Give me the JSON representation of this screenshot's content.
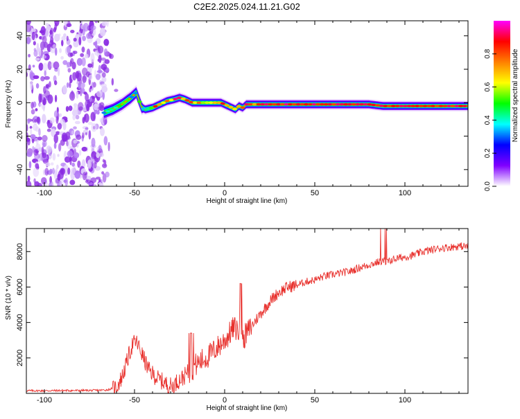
{
  "title": "C2E2.2025.024.11.21.G02",
  "chart_data": [
    {
      "type": "heatmap",
      "xlabel": "Height of straight line (km)",
      "ylabel": "Frequency (Hz)",
      "xlim": [
        -110,
        135
      ],
      "ylim": [
        -50,
        49
      ],
      "xticks": [
        -100,
        -50,
        0,
        50,
        100
      ],
      "xtick_labels": [
        "-100",
        "-50",
        "0",
        "50",
        "100"
      ],
      "yticks": [
        -40,
        -20,
        0,
        20,
        40
      ],
      "ytick_labels": [
        "-40",
        "-20",
        "0",
        "20",
        "40"
      ],
      "noise_region_x": [
        -110,
        -65
      ],
      "ridge": {
        "x": [
          -67,
          -62,
          -57,
          -52,
          -49,
          -46,
          -44,
          -40,
          -36,
          -32,
          -28,
          -25,
          -22,
          -18,
          -14,
          -10,
          -6,
          -2,
          0,
          2,
          4,
          6,
          8,
          10,
          12,
          15,
          20,
          30,
          40,
          60,
          80,
          88,
          95,
          110,
          125,
          135
        ],
        "y": [
          -6,
          -4,
          -1,
          3,
          6,
          -3,
          -4,
          -3,
          -1,
          1,
          2,
          3,
          2,
          0,
          0,
          0,
          0,
          0,
          -1,
          -2,
          -3,
          -4,
          -2,
          -3,
          -1,
          -1,
          -1,
          -1,
          -1,
          -1,
          -1,
          -2,
          -2,
          -2,
          -2,
          -2
        ]
      },
      "colorbar": {
        "label": "Normalized spectral amplitude",
        "range": [
          0,
          1
        ],
        "ticks": [
          0.0,
          0.2,
          0.4,
          0.6,
          0.8
        ],
        "tick_labels": [
          "0.0",
          "0.2",
          "0.4",
          "0.6",
          "0.8"
        ],
        "colors": [
          "#ffffff",
          "#8000ff",
          "#0000ff",
          "#00ffff",
          "#00ff00",
          "#ffff00",
          "#ff8000",
          "#ff0000",
          "#ff00ff"
        ]
      }
    },
    {
      "type": "line",
      "xlabel": "Height of straight line (km)",
      "ylabel": "SNR (10 * v/v)",
      "xlim": [
        -110,
        135
      ],
      "ylim": [
        0,
        9300
      ],
      "xticks": [
        -100,
        -50,
        0,
        50,
        100
      ],
      "xtick_labels": [
        "-100",
        "-50",
        "0",
        "50",
        "100"
      ],
      "yticks": [
        2000,
        4000,
        6000,
        8000
      ],
      "ytick_labels": [
        "2000",
        "4000",
        "6000",
        "8000"
      ],
      "color": "#e8302c",
      "series": [
        {
          "x": [
            -110,
            -100,
            -90,
            -80,
            -70,
            -65,
            -60,
            -57,
            -55,
            -53,
            -51,
            -49,
            -47,
            -45,
            -42,
            -38,
            -35,
            -32,
            -29,
            -26,
            -23,
            -20,
            -18,
            -15,
            -12,
            -9,
            -6,
            -3,
            0,
            3,
            5,
            7,
            9,
            11,
            13,
            15,
            17,
            20,
            23,
            26,
            30,
            35,
            40,
            45,
            50,
            55,
            60,
            65,
            70,
            75,
            80,
            85,
            88,
            90,
            92,
            95,
            100,
            105,
            110,
            115,
            120,
            125,
            130,
            135
          ],
          "y": [
            150,
            150,
            160,
            160,
            170,
            200,
            350,
            900,
            1500,
            2200,
            2800,
            2900,
            2500,
            2000,
            1300,
            900,
            700,
            500,
            400,
            700,
            900,
            1200,
            1400,
            1700,
            1900,
            2100,
            2400,
            2700,
            3000,
            3400,
            3700,
            3600,
            3300,
            3200,
            3500,
            3800,
            4100,
            4500,
            4900,
            5300,
            5700,
            6000,
            6100,
            6300,
            6400,
            6600,
            6700,
            6800,
            6900,
            7100,
            7250,
            7400,
            7500,
            7400,
            7500,
            7600,
            7700,
            7800,
            8000,
            8100,
            8200,
            8250,
            8300,
            8300
          ]
        }
      ]
    }
  ]
}
